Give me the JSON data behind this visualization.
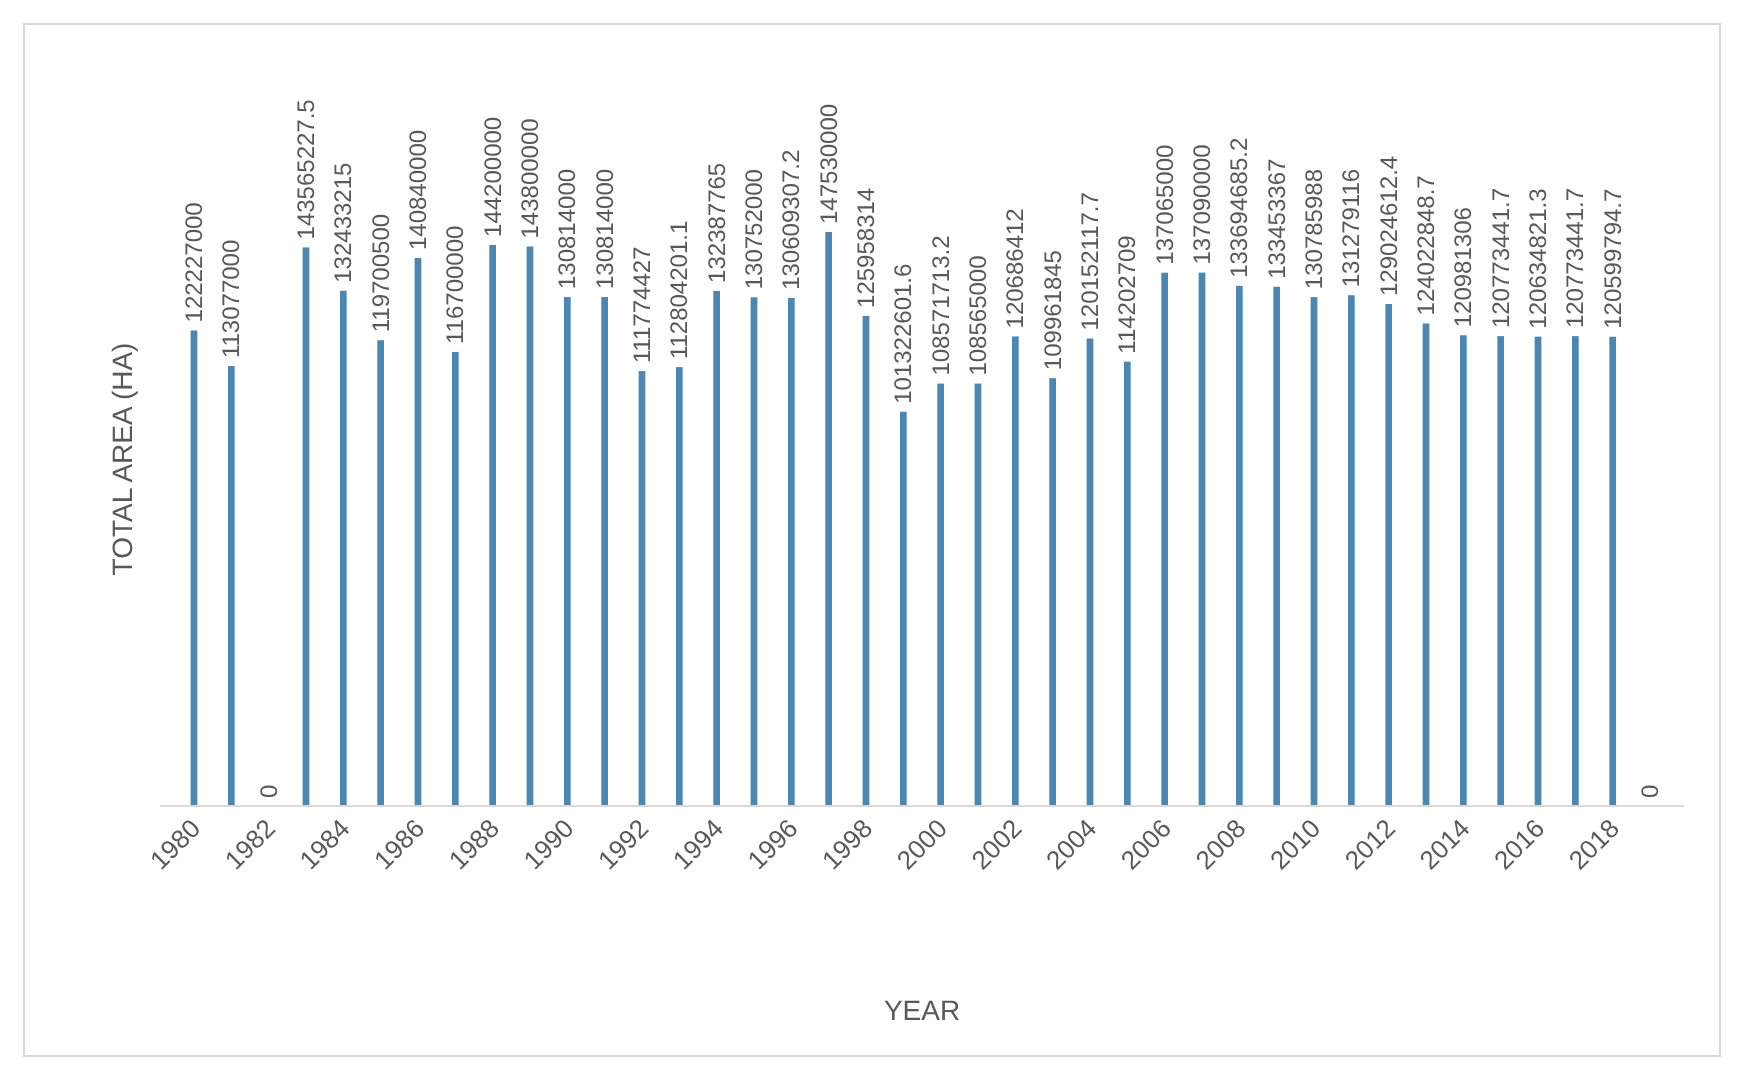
{
  "chart_data": {
    "type": "bar",
    "xlabel": "YEAR",
    "ylabel": "TOTAL AREA (HA)",
    "color": "#4f86b0",
    "data_labels": true,
    "categories": [
      "1980",
      null,
      "1982",
      null,
      "1984",
      null,
      "1986",
      null,
      "1988",
      null,
      "1990",
      null,
      "1992",
      null,
      "1994",
      null,
      "1996",
      null,
      "1998",
      null,
      "2000",
      null,
      "2002",
      null,
      "2004",
      null,
      "2006",
      null,
      "2008",
      null,
      "2010",
      null,
      "2012",
      null,
      "2014",
      null,
      "2016",
      null,
      "2018",
      null
    ],
    "values": [
      122227000,
      113077000,
      0,
      143565227.5,
      132433215,
      119700500,
      140840000,
      116700000,
      144200000,
      143800000,
      130814000,
      130814000,
      111774427,
      112804201.1,
      132387765,
      130752000,
      130609307.2,
      147530000,
      125958314,
      101322601.6,
      108571713.2,
      108565000,
      120686412,
      109961845,
      120152117.7,
      114202709,
      137065000,
      137090000,
      133694685.2,
      133453367,
      130785988,
      131279116,
      129024612.4,
      124022848.7,
      120981306,
      120773441.7,
      120634821.3,
      120773441.7,
      120599794.7,
      0
    ]
  }
}
